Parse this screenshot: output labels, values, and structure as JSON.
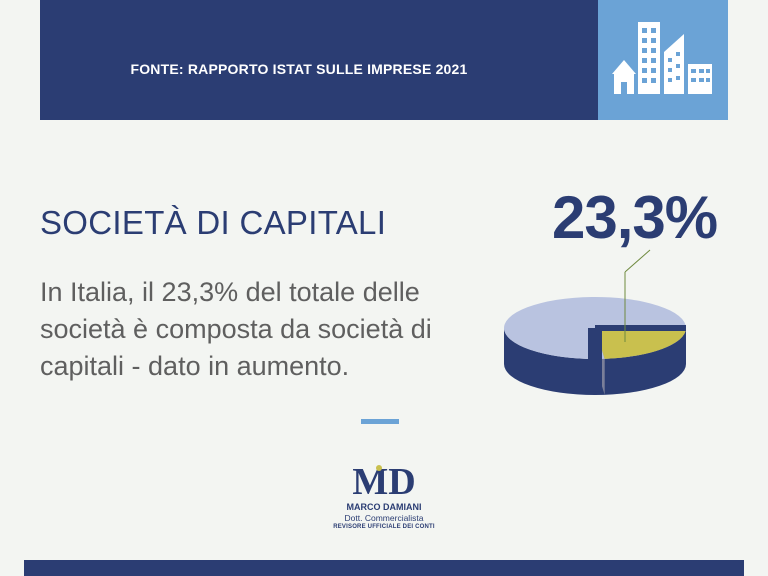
{
  "header": {
    "source": "FONTE:  RAPPORTO ISTAT SULLE IMPRESE 2021",
    "icon": "buildings-icon"
  },
  "main": {
    "title": "SOCIETÀ DI CAPITALI",
    "percent_label": "23,3%",
    "description": "In Italia, il 23,3% del totale delle società è composta da società di capitali - dato in aumento."
  },
  "chart_data": {
    "type": "pie",
    "style": "3d",
    "slices": [
      {
        "label": "23,3%",
        "value": 23.3,
        "color": "#c9c04e"
      },
      {
        "value": 76.7,
        "color": "#b9c3e0"
      }
    ],
    "colors": {
      "primary": "#2b3d73",
      "accent": "#6ba3d6",
      "highlight": "#c9c04e"
    }
  },
  "logo": {
    "mark": "MD",
    "name": "MARCO DAMIANI",
    "role": "Dott. Commercialista",
    "subtitle": "REVISORE UFFICIALE DEI CONTI"
  },
  "colors": {
    "background": "#f3f5f2",
    "brand": "#2b3d73",
    "accent": "#6ba3d6",
    "text": "#5f5f5f"
  }
}
